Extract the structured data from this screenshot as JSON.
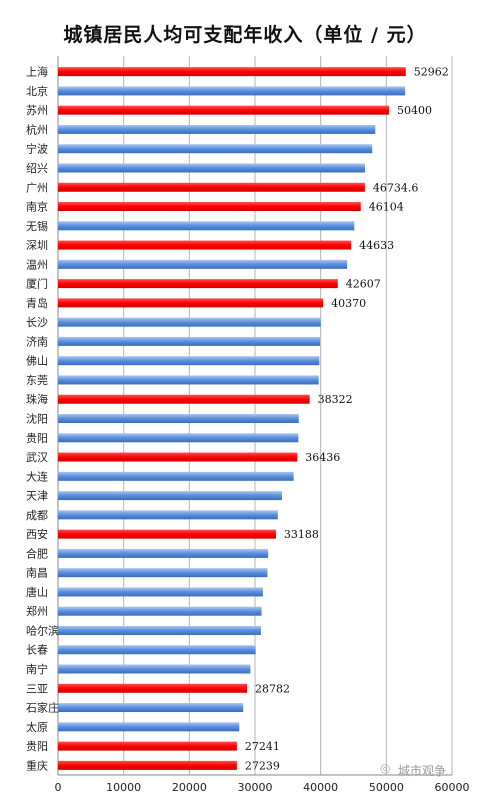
{
  "chart_data": {
    "type": "bar",
    "orientation": "horizontal",
    "title": "城镇居民人均可支配年收入（单位 / 元）",
    "xlim": [
      0,
      60000
    ],
    "xticks": [
      0,
      10000,
      20000,
      30000,
      40000,
      50000,
      60000
    ],
    "grid": true,
    "categories": [
      "上海",
      "北京",
      "苏州",
      "杭州",
      "宁波",
      "绍兴",
      "广州",
      "南京",
      "无锡",
      "深圳",
      "温州",
      "厦门",
      "青岛",
      "长沙",
      "济南",
      "佛山",
      "东莞",
      "珠海",
      "沈阳",
      "贵阳",
      "武汉",
      "大连",
      "天津",
      "成都",
      "西安",
      "合肥",
      "南昌",
      "唐山",
      "郑州",
      "哈尔滨",
      "长春",
      "南宁",
      "三亚",
      "石家庄",
      "太原",
      "贵阳",
      "重庆"
    ],
    "values": [
      52962,
      52859,
      50400,
      48316,
      47852,
      46747,
      46734.6,
      46104,
      45129,
      44633,
      44026,
      42607,
      40370,
      40000,
      39900,
      39800,
      39700,
      38322,
      36664,
      36600,
      36436,
      35889,
      34101,
      33476,
      33188,
      32000,
      31900,
      31200,
      31000,
      30900,
      30100,
      29300,
      28782,
      28200,
      27600,
      27241,
      27239
    ],
    "highlighted": [
      true,
      false,
      true,
      false,
      false,
      false,
      true,
      true,
      false,
      true,
      false,
      true,
      true,
      false,
      false,
      false,
      false,
      true,
      false,
      false,
      true,
      false,
      false,
      false,
      true,
      false,
      false,
      false,
      false,
      false,
      false,
      false,
      true,
      false,
      false,
      true,
      true
    ],
    "data_labels": [
      "52962",
      "",
      "50400",
      "",
      "",
      "",
      "46734.6",
      "46104",
      "",
      "44633",
      "",
      "42607",
      "40370",
      "",
      "",
      "",
      "",
      "38322",
      "",
      "",
      "36436",
      "",
      "",
      "",
      "33188",
      "",
      "",
      "",
      "",
      "",
      "",
      "",
      "28782",
      "",
      "",
      "27241",
      "27239"
    ],
    "colors": {
      "highlight": "#ff0000",
      "normal": "#5a8edb"
    }
  },
  "watermark": {
    "icon": "wechat-icon",
    "text": "城市观争"
  }
}
